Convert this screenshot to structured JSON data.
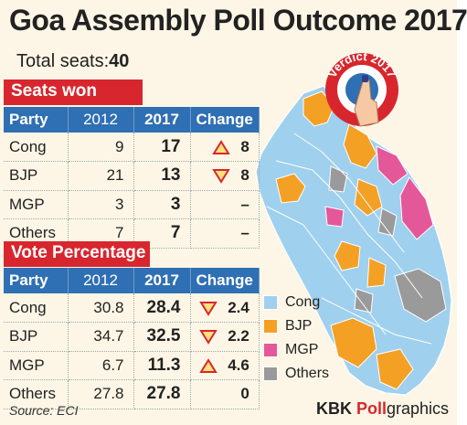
{
  "header": {
    "title": "Goa Assembly Poll Outcome 2017",
    "total_label": "Total seats:",
    "total_value": "40"
  },
  "badge": {
    "text": "Verdict 2017"
  },
  "seats_won": {
    "heading": "Seats won",
    "columns": [
      "Party",
      "2012",
      "2017",
      "Change"
    ],
    "rows": [
      {
        "party": "Cong",
        "y2012": "9",
        "y2017": "17",
        "change": "8",
        "dir": "up"
      },
      {
        "party": "BJP",
        "y2012": "21",
        "y2017": "13",
        "change": "8",
        "dir": "down"
      },
      {
        "party": "MGP",
        "y2012": "3",
        "y2017": "3",
        "change": "–",
        "dir": "none"
      },
      {
        "party": "Others",
        "y2012": "7",
        "y2017": "7",
        "change": "–",
        "dir": "none"
      }
    ]
  },
  "vote_percentage": {
    "heading": "Vote Percentage",
    "columns": [
      "Party",
      "2012",
      "2017",
      "Change"
    ],
    "rows": [
      {
        "party": "Cong",
        "y2012": "30.8",
        "y2017": "28.4",
        "change": "2.4",
        "dir": "down"
      },
      {
        "party": "BJP",
        "y2012": "34.7",
        "y2017": "32.5",
        "change": "2.2",
        "dir": "down"
      },
      {
        "party": "MGP",
        "y2012": "6.7",
        "y2017": "11.3",
        "change": "4.6",
        "dir": "up"
      },
      {
        "party": "Others",
        "y2012": "27.8",
        "y2017": "27.8",
        "change": "0",
        "dir": "none"
      }
    ]
  },
  "legend": [
    {
      "label": "Cong",
      "color": "#9fd0ee"
    },
    {
      "label": "BJP",
      "color": "#f4a024"
    },
    {
      "label": "MGP",
      "color": "#e4589a"
    },
    {
      "label": "Others",
      "color": "#9a9a9a"
    }
  ],
  "footer": {
    "source": "Source: ECI",
    "credit_brand": "KBK ",
    "credit_poll": "Poll",
    "credit_rest": "graphics"
  },
  "colors": {
    "accent_red": "#d8262e",
    "table_header_blue": "#2f6fb3",
    "background": "#fdf6e6"
  }
}
